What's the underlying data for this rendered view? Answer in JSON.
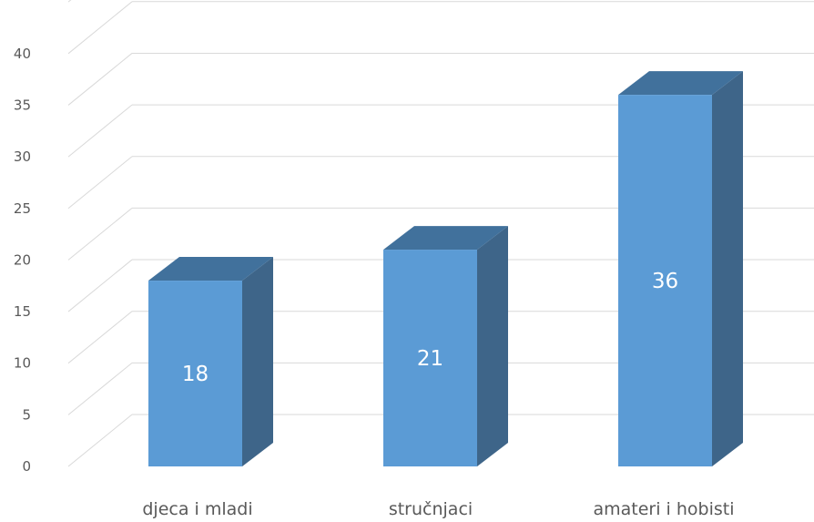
{
  "chart_data": {
    "type": "bar",
    "style": "3d-column",
    "categories": [
      "djeca i mladi",
      "stručnjaci",
      "amateri i hobisti"
    ],
    "values": [
      18,
      21,
      36
    ],
    "data_labels": [
      "18",
      "21",
      "36"
    ],
    "y_ticks": [
      "0",
      "5",
      "10",
      "15",
      "20",
      "25",
      "30",
      "35",
      "40"
    ],
    "ylim": [
      0,
      45
    ],
    "grid": true,
    "legend": "none",
    "colors": {
      "bar_front": "#5b9bd5",
      "bar_top": "#41719c",
      "bar_side": "#3e6589",
      "grid": "#d9d9d9",
      "text": "#595959",
      "label": "#ffffff"
    }
  }
}
